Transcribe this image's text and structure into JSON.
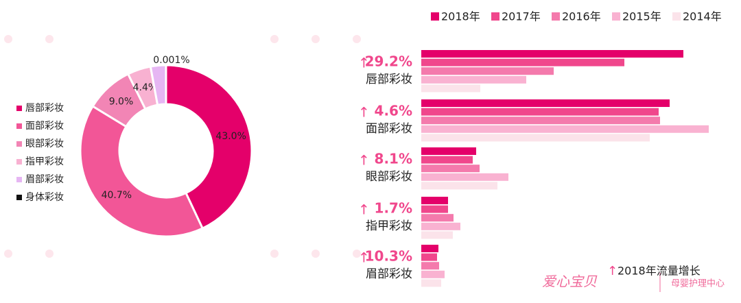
{
  "chart_data": [
    {
      "type": "pie",
      "categories": [
        "唇部彩妆",
        "面部彩妆",
        "眼部彩妆",
        "指甲彩妆",
        "眉部彩妆",
        "身体彩妆"
      ],
      "values": [
        43.0,
        40.7,
        9.0,
        4.4,
        2.9,
        0.001
      ],
      "value_labels": [
        "43.0%",
        "40.7%",
        "9.0%",
        "4.4%",
        null,
        "0.001%"
      ],
      "colors": [
        "#e4006a",
        "#f25697",
        "#f285b5",
        "#f8b1d1",
        "#e6b6f3",
        "#111111"
      ],
      "legend": "left"
    },
    {
      "type": "hbar",
      "categories": [
        "唇部彩妆",
        "面部彩妆",
        "眼部彩妆",
        "指甲彩妆",
        "眉部彩妆"
      ],
      "growth": [
        "29.2%",
        "4.6%",
        "8.1%",
        "1.7%",
        "10.3%"
      ],
      "note": "2018年流量增长",
      "xlim": [
        0,
        420
      ],
      "legend": "top",
      "series": [
        {
          "name": "2018年",
          "color": "#e4006a",
          "values": [
            382,
            362,
            80,
            39,
            25
          ]
        },
        {
          "name": "2017年",
          "color": "#f0478c",
          "values": [
            296,
            346,
            75,
            39,
            23
          ]
        },
        {
          "name": "2016年",
          "color": "#f47aac",
          "values": [
            193,
            348,
            85,
            47,
            26
          ]
        },
        {
          "name": "2015年",
          "color": "#f9b2d1",
          "values": [
            153,
            419,
            127,
            57,
            34
          ]
        },
        {
          "name": "2014年",
          "color": "#fbe3ea",
          "values": [
            86,
            333,
            111,
            46,
            29
          ]
        }
      ]
    }
  ],
  "watermark": {
    "brand": "爱心宝贝",
    "sub": "母婴护理中心"
  }
}
